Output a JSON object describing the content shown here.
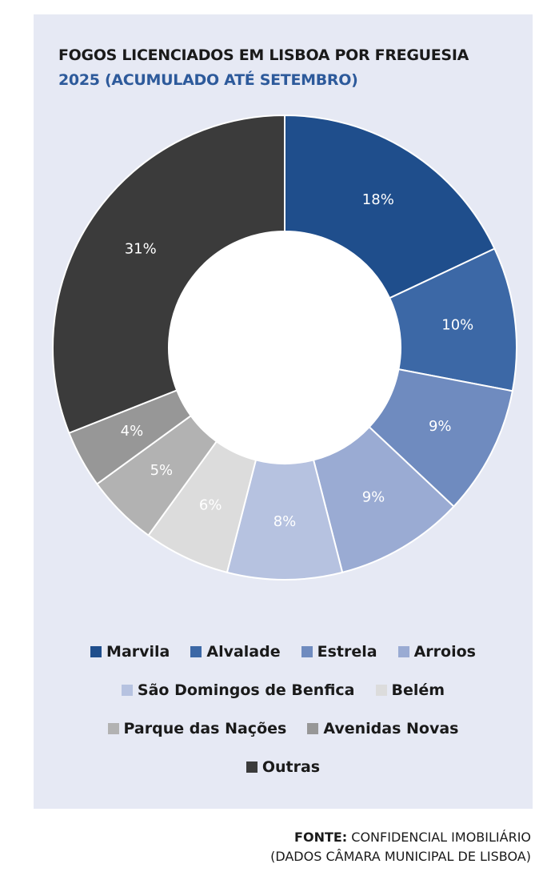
{
  "title": "FOGOS LICENCIADOS EM LISBOA POR FREGUESIA",
  "subtitle": "2025 (ACUMULADO ATÉ SETEMBRO)",
  "chart_data": {
    "type": "pie",
    "variant": "donut",
    "title": "FOGOS LICENCIADOS EM LISBOA POR FREGUESIA",
    "subtitle": "2025 (ACUMULADO ATÉ SETEMBRO)",
    "unit": "%",
    "slices": [
      {
        "name": "Marvila",
        "value": 18,
        "label": "18%",
        "color": "#1f4e8c"
      },
      {
        "name": "Alvalade",
        "value": 10,
        "label": "10%",
        "color": "#3c68a6"
      },
      {
        "name": "Estrela",
        "value": 9,
        "label": "9%",
        "color": "#6f8bbf"
      },
      {
        "name": "Arroios",
        "value": 9,
        "label": "9%",
        "color": "#9aabd3"
      },
      {
        "name": "São Domingos de Benfica",
        "value": 8,
        "label": "8%",
        "color": "#b6c2e0"
      },
      {
        "name": "Belém",
        "value": 6,
        "label": "6%",
        "color": "#dcdcdc"
      },
      {
        "name": "Parque das Nações",
        "value": 5,
        "label": "5%",
        "color": "#b2b2b2"
      },
      {
        "name": "Avenidas Novas",
        "value": 4,
        "label": "4%",
        "color": "#979797"
      },
      {
        "name": "Outras",
        "value": 31,
        "label": "31%",
        "color": "#3b3b3b"
      }
    ],
    "legend_position": "bottom"
  },
  "legend_rows": [
    [
      0,
      1,
      2,
      3
    ],
    [
      4,
      5
    ],
    [
      6,
      7
    ],
    [
      8
    ]
  ],
  "source": {
    "prefix": "FONTE:",
    "line1": " CONFIDENCIAL IMOBILIÁRIO",
    "line2": "(DADOS CÂMARA MUNICIPAL DE LISBOA)"
  }
}
